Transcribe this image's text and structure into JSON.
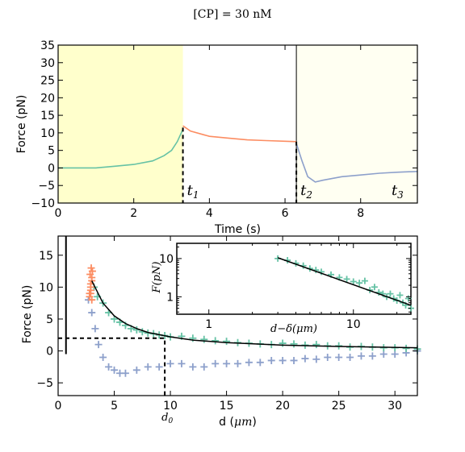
{
  "figure": {
    "title": "[CP] = 30 nM"
  },
  "colors": {
    "green": "#66c2a5",
    "orange": "#fc8d62",
    "blue": "#8da0cb",
    "shade_yellow": "#ffffcc",
    "shade_light": "#fffff2",
    "fit_line": "#000000"
  },
  "chart_data": [
    {
      "id": "top",
      "type": "line",
      "xlabel": "Time (s)",
      "ylabel": "Force (pN)",
      "xlim": [
        0,
        9.5
      ],
      "ylim": [
        -10,
        35
      ],
      "xticks": [
        0,
        2,
        4,
        6,
        8
      ],
      "yticks": [
        -10,
        -5,
        0,
        5,
        10,
        15,
        20,
        25,
        30,
        35
      ],
      "grid": false,
      "shaded_regions": [
        {
          "x0": 0,
          "x1": 3.3,
          "color": "shade_yellow"
        },
        {
          "x0": 6.3,
          "x1": 9.5,
          "color": "shade_light"
        }
      ],
      "annotations": [
        {
          "text": "t",
          "sub": "1",
          "x": 3.3,
          "dashed_from": 11.5
        },
        {
          "text": "t",
          "sub": "2",
          "x": 6.3,
          "dashed_from": 7.5
        },
        {
          "text": "t",
          "sub": "3",
          "x": 9.2
        }
      ],
      "series": [
        {
          "color": "green",
          "x": [
            0,
            0.5,
            1,
            1.5,
            2,
            2.5,
            2.8,
            3.0,
            3.15,
            3.3
          ],
          "y": [
            0,
            0,
            0,
            0.5,
            1,
            2,
            3.5,
            5,
            7.5,
            11
          ]
        },
        {
          "color": "orange",
          "x": [
            3.3,
            3.5,
            4,
            4.5,
            5,
            5.5,
            6,
            6.3
          ],
          "y": [
            12,
            10.5,
            9,
            8.5,
            8,
            7.8,
            7.6,
            7.5
          ]
        },
        {
          "color": "blue",
          "x": [
            6.3,
            6.45,
            6.6,
            6.8,
            7,
            7.5,
            8,
            8.5,
            9,
            9.5
          ],
          "y": [
            7,
            2,
            -2.5,
            -4,
            -3.5,
            -2.5,
            -2,
            -1.5,
            -1.2,
            -1
          ]
        }
      ]
    },
    {
      "id": "bottom",
      "type": "scatter",
      "xlabel": "d ($\\mu m$)",
      "xlabel_text": "d (",
      "xlabel_mu": "μm",
      "xlabel_close": ")",
      "ylabel": "Force (pN)",
      "xlim": [
        0,
        32
      ],
      "ylim": [
        -7,
        18
      ],
      "xticks": [
        0,
        5,
        10,
        15,
        20,
        25,
        30
      ],
      "yticks": [
        -5,
        0,
        5,
        10,
        15
      ],
      "grid": false,
      "vline_x": 0.7,
      "d0": {
        "label": "d",
        "sub": "0",
        "x": 9.5,
        "y": 2
      },
      "series": [
        {
          "color": "orange",
          "x": [
            2.8,
            2.8,
            2.9,
            2.9,
            2.9,
            3.0,
            3.0,
            2.85,
            3.05,
            2.95,
            3.0,
            2.9
          ],
          "y": [
            8.5,
            9,
            9.5,
            10,
            10.5,
            11,
            11.5,
            12,
            12.5,
            13,
            8,
            9
          ]
        },
        {
          "color": "green",
          "x": [
            3.2,
            3.5,
            4,
            4.5,
            5,
            5.5,
            6,
            6.5,
            7,
            7.5,
            8,
            8.5,
            9,
            9.5,
            10,
            11,
            12,
            13,
            14,
            15,
            16,
            17,
            18,
            19,
            20,
            21,
            22,
            23,
            24,
            25,
            26,
            27,
            28,
            29,
            30,
            31,
            32
          ],
          "y": [
            10,
            8.5,
            7.5,
            6,
            5,
            4.5,
            4,
            3.5,
            3.3,
            3,
            2.8,
            2.7,
            2.5,
            2.4,
            2.2,
            2.3,
            2,
            1.8,
            1.6,
            1.5,
            1.3,
            1.2,
            1.1,
            1.0,
            1.2,
            1.1,
            0.9,
            1.0,
            0.8,
            0.8,
            0.6,
            0.7,
            0.6,
            0.5,
            0.5,
            0.4,
            0.3
          ]
        },
        {
          "color": "blue",
          "x": [
            2.7,
            3.0,
            3.3,
            3.6,
            4.0,
            4.5,
            5.0,
            5.5,
            6.0,
            7.0,
            8.0,
            9.0,
            10.0,
            11.0,
            12.0,
            13.0,
            14.0,
            15.0,
            16.0,
            17.0,
            18.0,
            19.0,
            20.0,
            21.0,
            22.0,
            23.0,
            24.0,
            25.0,
            26.0,
            27.0,
            28.0,
            29.0,
            30.0,
            31.0,
            32.0
          ],
          "y": [
            8,
            6,
            3.5,
            1,
            -1,
            -2.5,
            -3,
            -3.5,
            -3.5,
            -3,
            -2.5,
            -2.5,
            -2,
            -2,
            -2.5,
            -2.5,
            -2,
            -2,
            -2,
            -1.8,
            -1.8,
            -1.5,
            -1.5,
            -1.5,
            -1.2,
            -1.3,
            -1,
            -1,
            -1,
            -0.8,
            -0.8,
            -0.5,
            -0.5,
            -0.3,
            0
          ]
        }
      ],
      "fit": {
        "x": [
          3,
          4,
          5,
          6,
          7,
          8,
          10,
          12,
          15,
          20,
          25,
          32
        ],
        "y": [
          11,
          7.5,
          5.5,
          4.3,
          3.5,
          2.9,
          2.2,
          1.7,
          1.3,
          0.9,
          0.7,
          0.5
        ]
      }
    },
    {
      "id": "inset",
      "type": "scatter",
      "xlabel_text": "d−δ(",
      "xlabel_mu": "μm",
      "xlabel_close": ")",
      "ylabel_text": "F(pN)",
      "xscale": "log",
      "yscale": "log",
      "xlim": [
        0.6,
        25
      ],
      "ylim": [
        0.35,
        25
      ],
      "xticks": [
        1,
        10
      ],
      "yticks": [
        1,
        10
      ],
      "series": [
        {
          "color": "green",
          "x": [
            3,
            3.5,
            4,
            4.5,
            5,
            5.5,
            6,
            7,
            8,
            9,
            10,
            11,
            12,
            13,
            14,
            15,
            16,
            17,
            18,
            19,
            20,
            21,
            22,
            23,
            24,
            25
          ],
          "y": [
            10,
            9,
            7.5,
            6.5,
            5.5,
            5,
            4.5,
            3.8,
            3.2,
            2.9,
            2.5,
            2.3,
            2.6,
            1.5,
            1.8,
            1.3,
            1.2,
            1.0,
            1.2,
            0.9,
            0.8,
            1.1,
            0.7,
            0.6,
            0.9,
            0.5
          ]
        }
      ],
      "fit": {
        "x": [
          3,
          25
        ],
        "y": [
          10.5,
          0.6
        ]
      }
    }
  ]
}
